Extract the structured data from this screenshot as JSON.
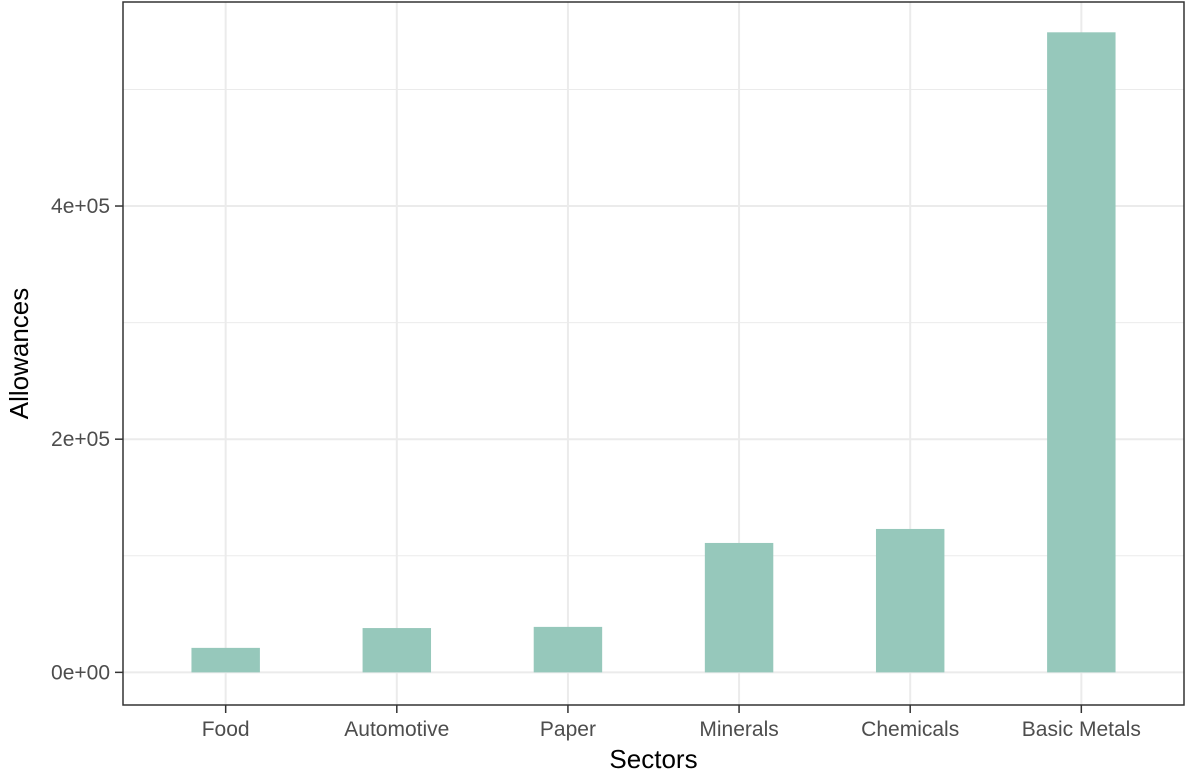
{
  "chart_data": {
    "type": "bar",
    "title": "",
    "xlabel": "Sectors",
    "ylabel": "Allowances",
    "categories": [
      "Food",
      "Automotive",
      "Paper",
      "Minerals",
      "Chemicals",
      "Basic Metals"
    ],
    "values": [
      21000,
      38000,
      39000,
      111000,
      123000,
      549000
    ],
    "ylim": [
      -28000,
      575000
    ],
    "yticks": [
      0,
      200000,
      400000
    ],
    "ytick_labels": [
      "0e+00",
      "2e+05",
      "4e+05"
    ],
    "minor_yticks": [
      100000,
      300000,
      500000
    ],
    "grid": true,
    "legend": "none",
    "colors": {
      "bar": "#96c8bb",
      "grid": "#ebebeb",
      "panel_border": "#333333"
    }
  }
}
